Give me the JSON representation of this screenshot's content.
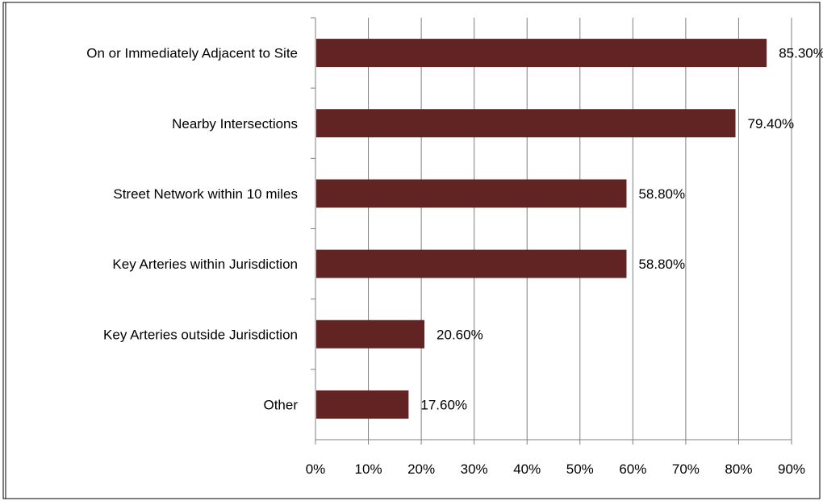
{
  "chart_data": {
    "type": "bar",
    "orientation": "horizontal",
    "categories": [
      "On or Immediately Adjacent to Site",
      "Nearby Intersections",
      "Street Network within 10 miles",
      "Key Arteries within Jurisdiction",
      "Key Arteries outside Jurisdiction",
      "Other"
    ],
    "values": [
      85.3,
      79.4,
      58.8,
      58.8,
      20.6,
      17.6
    ],
    "data_labels": [
      "85.30%",
      "79.40%",
      "58.80%",
      "58.80%",
      "20.60%",
      "17.60%"
    ],
    "x_ticks": [
      "0%",
      "10%",
      "20%",
      "30%",
      "40%",
      "50%",
      "60%",
      "70%",
      "80%",
      "90%"
    ],
    "xlim": [
      0,
      90
    ],
    "grid": true,
    "legend": "none",
    "bar_color": "#622423",
    "title": "",
    "xlabel": "",
    "ylabel": ""
  }
}
